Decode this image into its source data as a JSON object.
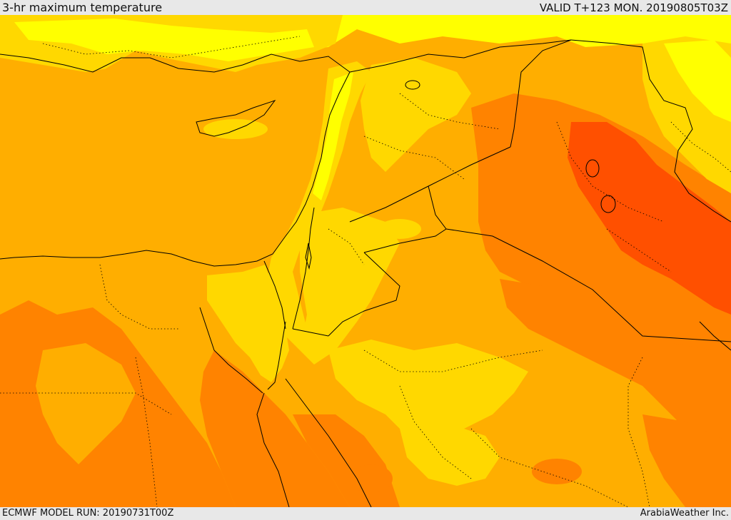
{
  "header": {
    "title": "3-hr maximum temperature",
    "valid": "VALID T+123 MON. 20190805T03Z"
  },
  "footer": {
    "model_run": "ECMWF MODEL RUN: 20190731T00Z",
    "credit": "ArabiaWeather Inc."
  },
  "map": {
    "variable": "3-hr maximum temperature",
    "colors": {
      "very_hot": "#ff5000",
      "hot": "#ff8300",
      "warm_orange": "#ffae00",
      "warm": "#ffd800",
      "mild": "#ffff00",
      "border": "#000000"
    }
  }
}
